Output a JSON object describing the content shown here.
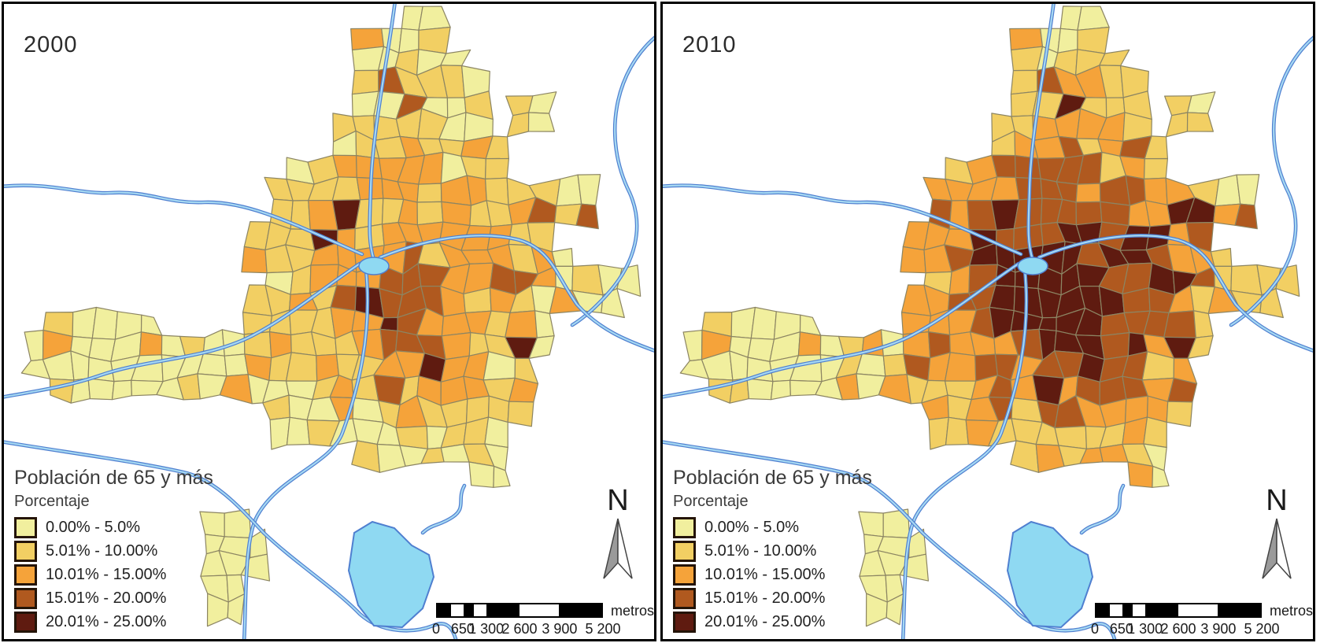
{
  "panels": [
    {
      "year": "2000"
    },
    {
      "year": "2010"
    }
  ],
  "legend": {
    "title": "Población de 65 y más",
    "subtitle": "Porcentaje",
    "items": [
      {
        "label": "0.00% - 5.0%",
        "color": "#f1ef9e"
      },
      {
        "label": "5.01% - 10.00%",
        "color": "#f2cf63"
      },
      {
        "label": "10.01% - 15.00%",
        "color": "#f5a33a"
      },
      {
        "label": "15.01% - 20.00%",
        "color": "#b0591f"
      },
      {
        "label": "20.01% - 25.00%",
        "color": "#5f1b10"
      }
    ]
  },
  "scalebar": {
    "ticks": [
      "0",
      "650",
      "1 300",
      "2 600",
      "3 900",
      "5 200"
    ],
    "unit": "metros"
  },
  "north": {
    "label": "N"
  },
  "map_colors": {
    "river": "#4f7fd0",
    "river_fill": "#a5d8f2",
    "lake": "#8fd9f2",
    "lake_stroke": "#4f7fd0",
    "tract_border": "#8c8563",
    "background": "#ffffff"
  }
}
